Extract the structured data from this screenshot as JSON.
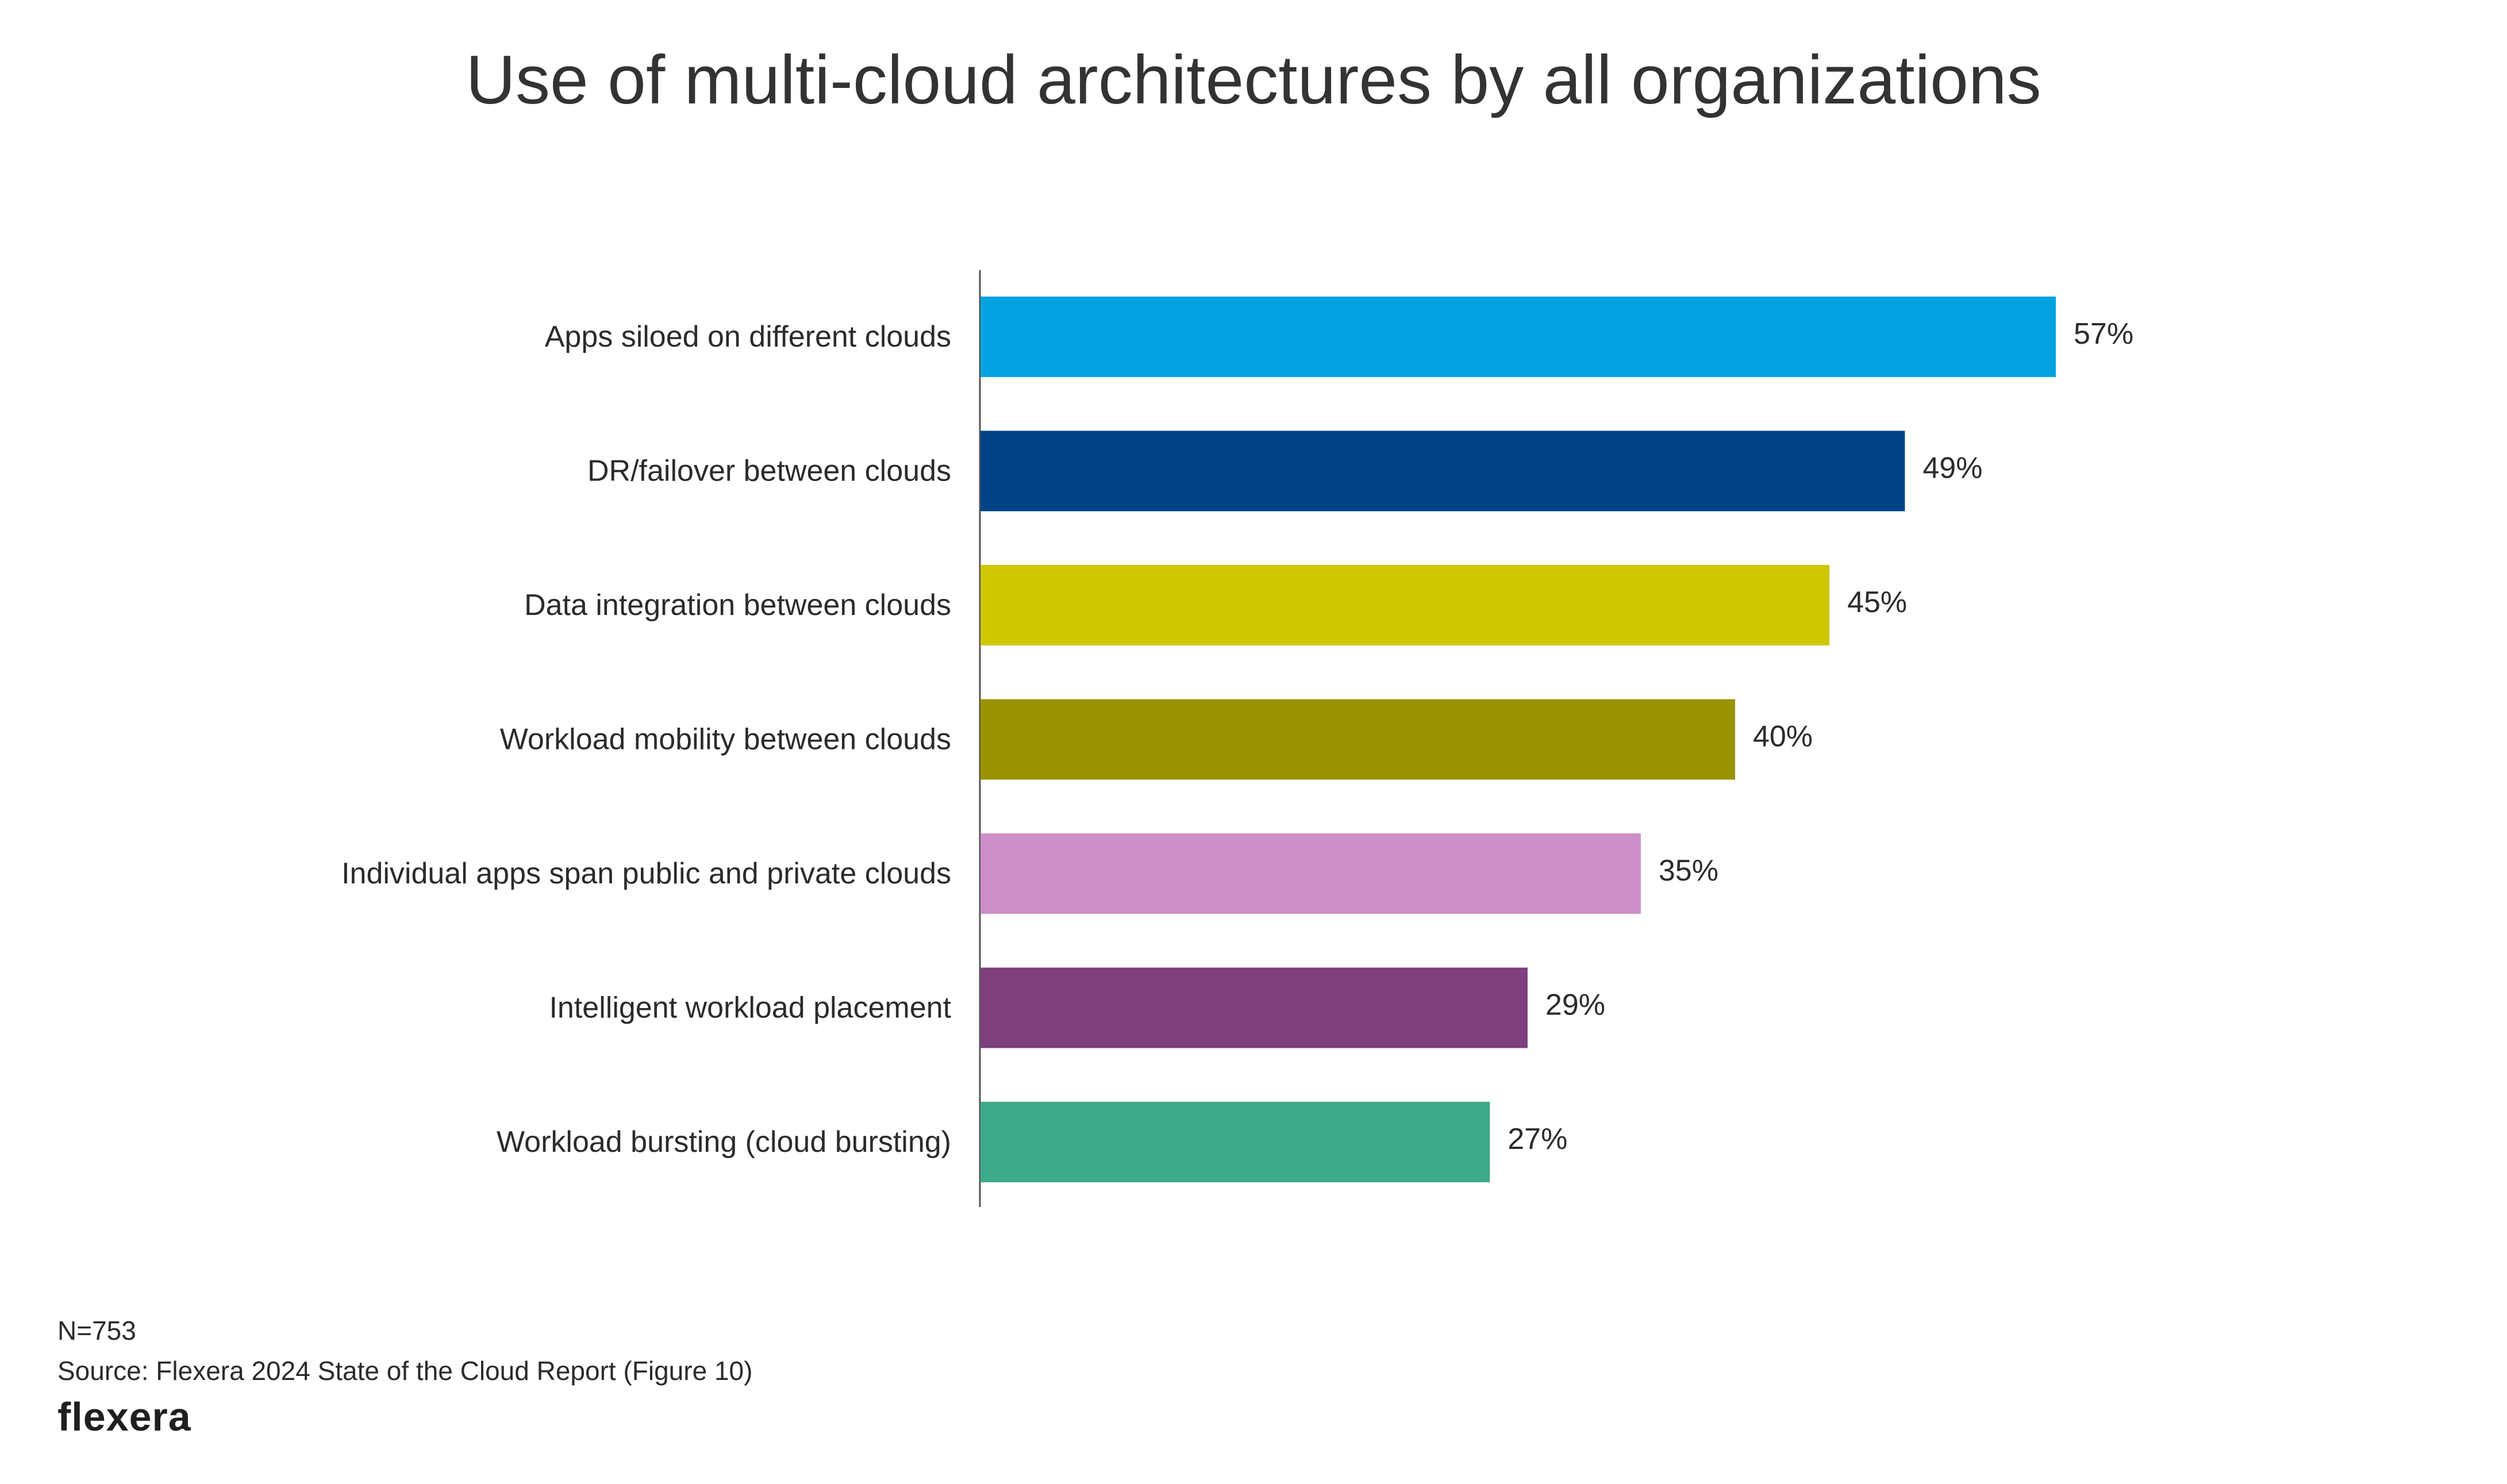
{
  "chart_data": {
    "type": "bar",
    "orientation": "horizontal",
    "title": "Use of multi-cloud architectures by all organizations",
    "categories": [
      "Apps siloed on different clouds",
      "DR/failover between clouds",
      "Data integration between clouds",
      "Workload mobility between clouds",
      "Individual apps span public and private clouds",
      "Intelligent workload placement",
      "Workload bursting (cloud bursting)"
    ],
    "values": [
      57,
      49,
      45,
      40,
      35,
      29,
      27
    ],
    "value_labels": [
      "57%",
      "49%",
      "45%",
      "40%",
      "35%",
      "29%",
      "27%"
    ],
    "colors": [
      "#00a3e0",
      "#004385",
      "#cfc600",
      "#9a9400",
      "#cc8fca",
      "#7d3f7e",
      "#3ea98b"
    ],
    "unit": "%",
    "xlim": [
      0,
      65
    ],
    "grid": false,
    "legend": "none"
  },
  "footer": {
    "note": "N=753",
    "source": "Source: Flexera 2024 State of the Cloud Report (Figure 10)",
    "logo_text": "flexera"
  }
}
